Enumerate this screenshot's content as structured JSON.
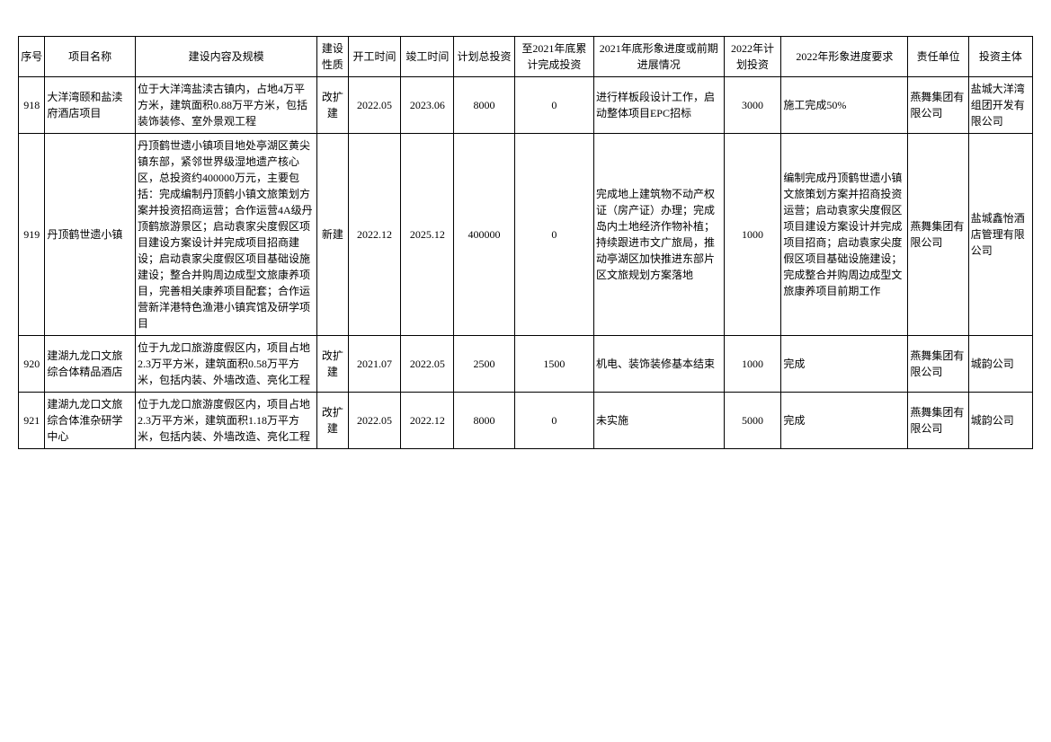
{
  "headers": {
    "seq": "序号",
    "name": "项目名称",
    "content": "建设内容及规模",
    "nature": "建设性质",
    "start": "开工时间",
    "end": "竣工时间",
    "total": "计划总投资",
    "cumul": "至2021年底累计完成投资",
    "prog21": "2021年底形象进度或前期进展情况",
    "plan22": "2022年计划投资",
    "req22": "2022年形象进度要求",
    "resp": "责任单位",
    "invest": "投资主体"
  },
  "rows": [
    {
      "seq": "918",
      "name": "大洋湾颐和盐渎府酒店项目",
      "content": "位于大洋湾盐渎古镇内，占地4万平方米，建筑面积0.88万平方米，包括装饰装修、室外景观工程",
      "nature": "改扩建",
      "start": "2022.05",
      "end": "2023.06",
      "total": "8000",
      "cumul": "0",
      "prog21": "进行样板段设计工作，启动整体项目EPC招标",
      "plan22": "3000",
      "req22": "施工完成50%",
      "resp": "燕舞集团有限公司",
      "invest": "盐城大洋湾组团开发有限公司"
    },
    {
      "seq": "919",
      "name": "丹顶鹤世遗小镇",
      "content": "丹顶鹤世遗小镇项目地处亭湖区黄尖镇东部，紧邻世界级湿地遗产核心区，总投资约400000万元，主要包括：完成编制丹顶鹤小镇文旅策划方案并投资招商运营；合作运营4A级丹顶鹤旅游景区；启动袁家尖度假区项目建设方案设计并完成项目招商建设；启动袁家尖度假区项目基础设施建设；整合并购周边成型文旅康养项目，完善相关康养项目配套；合作运营新洋港特色渔港小镇宾馆及研学项目",
      "nature": "新建",
      "start": "2022.12",
      "end": "2025.12",
      "total": "400000",
      "cumul": "0",
      "prog21": "完成地上建筑物不动产权证（房产证）办理；完成岛内土地经济作物补植；持续跟进市文广旅局，推动亭湖区加快推进东部片区文旅规划方案落地",
      "plan22": "1000",
      "req22": "编制完成丹顶鹤世遗小镇文旅策划方案并招商投资运营；启动袁家尖度假区项目建设方案设计并完成项目招商；启动袁家尖度假区项目基础设施建设；完成整合并购周边成型文旅康养项目前期工作",
      "resp": "燕舞集团有限公司",
      "invest": "盐城鑫怡酒店管理有限公司"
    },
    {
      "seq": "920",
      "name": "建湖九龙口文旅综合体精品酒店",
      "content": "位于九龙口旅游度假区内，项目占地2.3万平方米，建筑面积0.58万平方米，包括内装、外墙改造、亮化工程",
      "nature": "改扩建",
      "start": "2021.07",
      "end": "2022.05",
      "total": "2500",
      "cumul": "1500",
      "prog21": "机电、装饰装修基本结束",
      "plan22": "1000",
      "req22": "完成",
      "resp": "燕舞集团有限公司",
      "invest": "城韵公司"
    },
    {
      "seq": "921",
      "name": "建湖九龙口文旅综合体淮杂研学中心",
      "content": "位于九龙口旅游度假区内，项目占地2.3万平方米，建筑面积1.18万平方米，包括内装、外墙改造、亮化工程",
      "nature": "改扩建",
      "start": "2022.05",
      "end": "2022.12",
      "total": "8000",
      "cumul": "0",
      "prog21": "未实施",
      "plan22": "5000",
      "req22": "完成",
      "resp": "燕舞集团有限公司",
      "invest": "城韵公司"
    }
  ]
}
